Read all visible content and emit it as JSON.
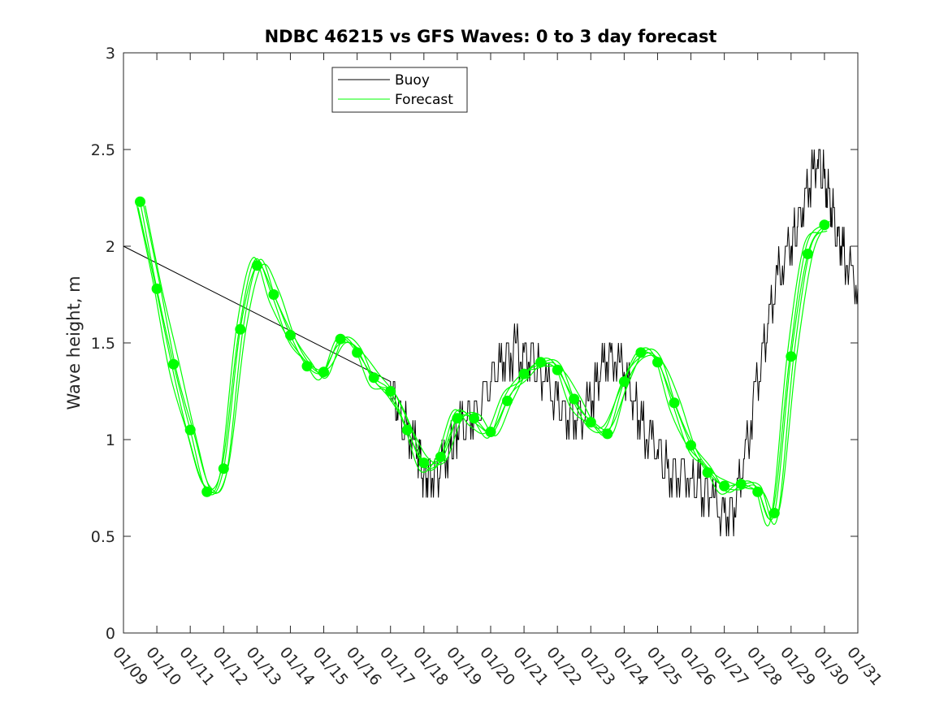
{
  "chart_data": {
    "type": "line",
    "title": "NDBC 46215 vs GFS Waves: 0 to 3 day forecast",
    "ylabel": "Wave height, m",
    "xlabel": "",
    "x_tick_labels": [
      "01/09",
      "01/10",
      "01/11",
      "01/12",
      "01/13",
      "01/14",
      "01/15",
      "01/16",
      "01/17",
      "01/18",
      "01/19",
      "01/20",
      "01/21",
      "01/22",
      "01/23",
      "01/24",
      "01/25",
      "01/26",
      "01/27",
      "01/28",
      "01/29",
      "01/30",
      "01/31"
    ],
    "y_tick_labels": [
      "0",
      "0.5",
      "1",
      "1.5",
      "2",
      "2.5",
      "3"
    ],
    "xlim_days": [
      0,
      22
    ],
    "ylim": [
      0,
      3
    ],
    "legend": {
      "position": "top-center",
      "entries": [
        "Buoy",
        "Forecast"
      ]
    },
    "colors": {
      "buoy": "#000000",
      "forecast": "#00ff00",
      "axis": "#262626"
    },
    "series": [
      {
        "name": "Buoy",
        "style": "thin-line",
        "x_days": [
          0,
          8.0,
          8.2,
          8.5,
          8.8,
          9.0,
          9.2,
          9.5,
          9.8,
          10.0,
          10.3,
          10.6,
          11.0,
          11.3,
          11.6,
          12.0,
          12.3,
          12.6,
          13.0,
          13.3,
          13.6,
          14.0,
          14.3,
          14.6,
          15.0,
          15.3,
          15.6,
          16.0,
          16.3,
          16.6,
          17.0,
          17.3,
          17.6,
          18.0,
          18.3,
          18.6,
          19.0,
          19.3,
          19.6,
          20.0,
          20.2,
          20.5,
          20.8,
          21.0,
          21.2,
          21.4,
          21.6,
          22.0
        ],
        "values": [
          2.0,
          1.3,
          1.15,
          1.05,
          0.95,
          0.82,
          0.8,
          0.85,
          0.95,
          1.05,
          1.1,
          1.15,
          1.3,
          1.4,
          1.45,
          1.45,
          1.4,
          1.3,
          1.2,
          1.1,
          1.1,
          1.2,
          1.35,
          1.45,
          1.35,
          1.2,
          1.05,
          0.95,
          0.85,
          0.8,
          0.8,
          0.75,
          0.7,
          0.62,
          0.65,
          0.9,
          1.3,
          1.6,
          1.85,
          2.0,
          2.1,
          2.3,
          2.45,
          2.35,
          2.2,
          2.05,
          1.95,
          1.78
        ]
      },
      {
        "name": "Forecast",
        "style": "thin-lines-with-markers",
        "x_days": [
          0.5,
          1.0,
          1.5,
          2.0,
          2.5,
          3.0,
          3.5,
          4.0,
          4.5,
          5.0,
          5.5,
          6.0,
          6.5,
          7.0,
          7.5,
          8.0,
          8.5,
          9.0,
          9.5,
          10.0,
          10.5,
          11.0,
          11.5,
          12.0,
          12.5,
          13.0,
          13.5,
          14.0,
          14.5,
          15.0,
          15.5,
          16.0,
          16.5,
          17.0,
          17.5,
          18.0,
          18.5,
          19.0,
          19.5,
          20.0,
          20.5,
          21.0
        ],
        "values": [
          2.23,
          1.78,
          1.39,
          1.05,
          0.73,
          0.85,
          1.57,
          1.9,
          1.75,
          1.54,
          1.38,
          1.35,
          1.52,
          1.45,
          1.32,
          1.25,
          1.05,
          0.88,
          0.91,
          1.11,
          1.11,
          1.04,
          1.2,
          1.34,
          1.4,
          1.36,
          1.21,
          1.09,
          1.03,
          1.3,
          1.45,
          1.4,
          1.19,
          0.97,
          0.83,
          0.76,
          0.77,
          0.73,
          0.62,
          1.43,
          1.96,
          2.11
        ]
      }
    ]
  }
}
